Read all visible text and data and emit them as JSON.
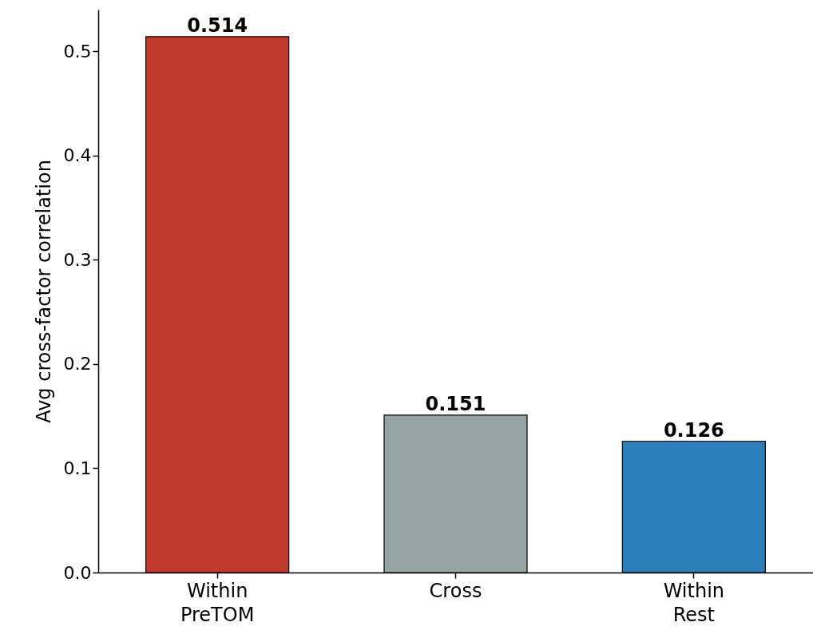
{
  "chart_data": {
    "type": "bar",
    "ylabel": "Avg cross-factor correlation",
    "categories": [
      "Within PreTOM",
      "Cross",
      "Within Rest"
    ],
    "values": [
      0.514,
      0.151,
      0.126
    ],
    "colors": [
      "#c0392b",
      "#95a5a6",
      "#2980b9"
    ],
    "ylim": [
      0,
      0.54
    ],
    "yticks": [
      {
        "value": 0,
        "label": "0.0"
      },
      {
        "value": 0.1,
        "label": "0.1"
      },
      {
        "value": 0.2,
        "label": "0.2"
      },
      {
        "value": 0.3,
        "label": "0.3"
      },
      {
        "value": 0.4,
        "label": "0.4"
      },
      {
        "value": 0.5,
        "label": "0.5"
      }
    ],
    "grid": false,
    "data_labels": true
  }
}
